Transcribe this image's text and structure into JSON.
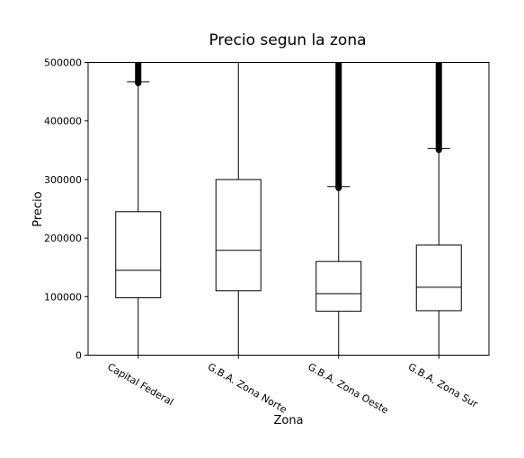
{
  "chart_data": {
    "type": "box",
    "title": "Precio segun la zona",
    "xlabel": "Zona",
    "ylabel": "Precio",
    "ylim": [
      0,
      500000
    ],
    "yticks": [
      0,
      100000,
      200000,
      300000,
      400000,
      500000
    ],
    "ytick_labels": [
      "0",
      "100000",
      "200000",
      "300000",
      "400000",
      "500000"
    ],
    "grid": false,
    "categories": [
      "Capital Federal",
      "G.B.A. Zona Norte",
      "G.B.A. Zona Oeste",
      "G.B.A. Zona Sur"
    ],
    "boxes": [
      {
        "q1": 98000,
        "median": 145000,
        "q3": 245000,
        "whisker_low": 0,
        "whisker_high": 467000,
        "outliers_from": 467000,
        "outliers_to": 500000
      },
      {
        "q1": 110000,
        "median": 179000,
        "q3": 300000,
        "whisker_low": 0,
        "whisker_high": 500000,
        "outliers_from": null,
        "outliers_to": null
      },
      {
        "q1": 75000,
        "median": 105000,
        "q3": 160000,
        "whisker_low": 0,
        "whisker_high": 288000,
        "outliers_from": 288000,
        "outliers_to": 500000
      },
      {
        "q1": 76000,
        "median": 116000,
        "q3": 188000,
        "whisker_low": 0,
        "whisker_high": 353000,
        "outliers_from": 353000,
        "outliers_to": 500000
      }
    ],
    "line_color": "#000000",
    "background": "#ffffff"
  }
}
